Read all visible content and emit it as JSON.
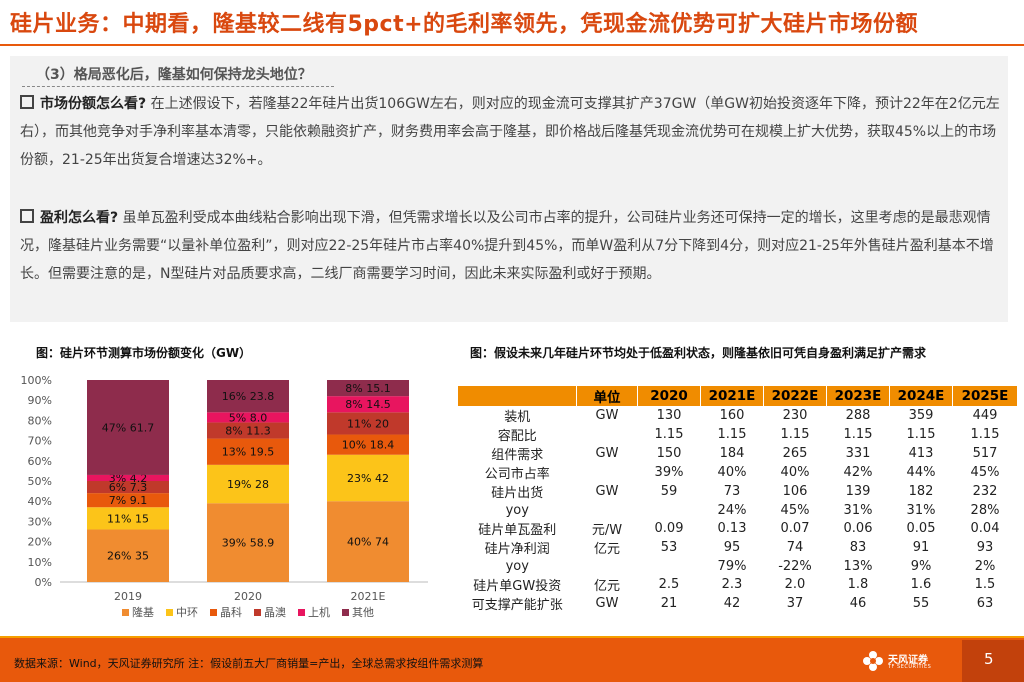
{
  "page": {
    "title": "硅片业务：中期看，隆基较二线有5pct+的毛利率领先，凭现金流优势可扩大硅片市场份额",
    "section_heading": "（3）格局恶化后，隆基如何保持龙头地位？",
    "para1": {
      "lead": "市场份额怎么看?",
      "text": " 在上述假设下，若隆基22年硅片出货106GW左右，则对应的现金流可支撑其扩产37GW（单GW初始投资逐年下降，预计22年在2亿元左右），而其他竞争对手净利率基本清零，只能依赖融资扩产，财务费用率会高于隆基，即价格战后隆基凭现金流优势可在规模上扩大优势，获取45%以上的市场份额，21-25年出货复合增速达32%+。"
    },
    "para2": {
      "lead": "盈利怎么看?",
      "text": " 虽单瓦盈利受成本曲线粘合影响出现下滑，但凭需求增长以及公司市占率的提升，公司硅片业务还可保持一定的增长，这里考虑的是最悲观情况，隆基硅片业务需要“以量补单位盈利”，则对应22-25年硅片市占率40%提升到45%，而单W盈利从7分下降到4分，则对应21-25年外售硅片盈利基本不增长。但需要注意的是，N型硅片对品质要求高，二线厂商需要学习时间，因此未来实际盈利或好于预期。"
    },
    "chart_caption": "图：硅片环节测算市场份额变化（GW）",
    "table_caption": "图：假设未来几年硅片环节均处于低盈利状态，则隆基依旧可凭自身盈利满足扩产需求",
    "footer_text": "数据来源：Wind，天风证券研究所  注：假设前五大厂商销量=产出，全球总需求按组件需求测算",
    "logo_text": "天风证券",
    "logo_sub": "TF SECURITIES",
    "page_number": "5"
  },
  "chart_data": {
    "type": "bar",
    "stacked": true,
    "percent": true,
    "categories": [
      "2019",
      "2020",
      "2021E"
    ],
    "yticks": [
      "0%",
      "10%",
      "20%",
      "30%",
      "40%",
      "50%",
      "60%",
      "70%",
      "80%",
      "90%",
      "100%"
    ],
    "ylim": [
      0,
      100
    ],
    "legend_position": "bottom",
    "series": [
      {
        "name": "隆基",
        "color": "#f08c30",
        "values": [
          26,
          39,
          40
        ],
        "labels": [
          "26% 35",
          "39% 58.9",
          "40% 74"
        ]
      },
      {
        "name": "中环",
        "color": "#fcc419",
        "values": [
          11,
          19,
          23
        ],
        "labels": [
          "11% 15",
          "19% 28",
          "23% 42"
        ]
      },
      {
        "name": "晶科",
        "color": "#e8590c",
        "values": [
          7,
          13,
          10
        ],
        "labels": [
          "7% 9.1",
          "13% 19.5",
          "10% 18.4"
        ]
      },
      {
        "name": "晶澳",
        "color": "#c0392b",
        "values": [
          6,
          8,
          11
        ],
        "labels": [
          "6% 7.3",
          "8% 11.3",
          "11% 20"
        ]
      },
      {
        "name": "上机",
        "color": "#e8155f",
        "values": [
          3,
          5,
          8
        ],
        "labels": [
          "3% 4.2",
          "5% 8.0",
          "8% 14.5"
        ]
      },
      {
        "name": "其他",
        "color": "#8e2c4c",
        "values": [
          47,
          16,
          8
        ],
        "labels": [
          "47% 61.7",
          "16% 23.8",
          "8% 15.1"
        ]
      }
    ]
  },
  "table": {
    "header": [
      "",
      "单位",
      "2020",
      "2021E",
      "2022E",
      "2023E",
      "2024E",
      "2025E"
    ],
    "rows": [
      [
        "装机",
        "GW",
        "130",
        "160",
        "230",
        "288",
        "359",
        "449"
      ],
      [
        "容配比",
        "",
        "1.15",
        "1.15",
        "1.15",
        "1.15",
        "1.15",
        "1.15"
      ],
      [
        "组件需求",
        "GW",
        "150",
        "184",
        "265",
        "331",
        "413",
        "517"
      ],
      [
        "公司市占率",
        "",
        "39%",
        "40%",
        "40%",
        "42%",
        "44%",
        "45%"
      ],
      [
        "硅片出货",
        "GW",
        "59",
        "73",
        "106",
        "139",
        "182",
        "232"
      ],
      [
        "yoy",
        "",
        "",
        "24%",
        "45%",
        "31%",
        "31%",
        "28%"
      ],
      [
        "硅片单瓦盈利",
        "元/W",
        "0.09",
        "0.13",
        "0.07",
        "0.06",
        "0.05",
        "0.04"
      ],
      [
        "硅片净利润",
        "亿元",
        "53",
        "95",
        "74",
        "83",
        "91",
        "93"
      ],
      [
        "yoy",
        "",
        "",
        "79%",
        "-22%",
        "13%",
        "9%",
        "2%"
      ],
      [
        "硅片单GW投资",
        "亿元",
        "2.5",
        "2.3",
        "2.0",
        "1.8",
        "1.6",
        "1.5"
      ],
      [
        "可支撑产能扩张",
        "GW",
        "21",
        "42",
        "37",
        "46",
        "55",
        "63"
      ]
    ]
  }
}
